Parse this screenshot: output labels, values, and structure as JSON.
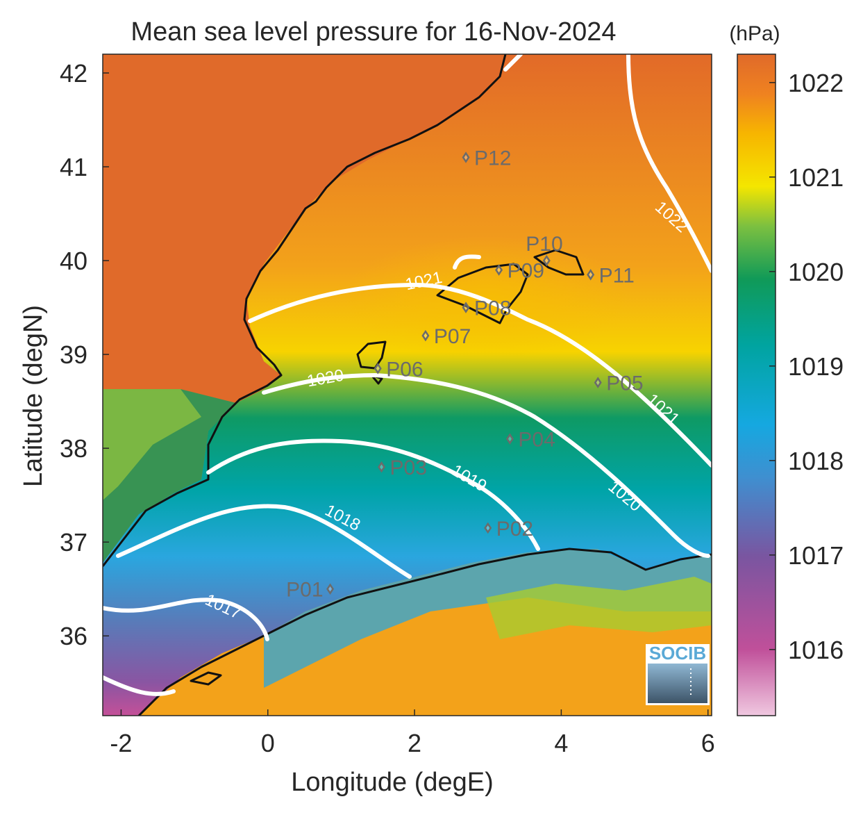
{
  "title": "Mean sea level pressure for 16-Nov-2024",
  "xlabel": "Longitude (degE)",
  "ylabel": "Latitude (degN)",
  "x_ticks": [
    "-2",
    "0",
    "2",
    "4",
    "6"
  ],
  "y_ticks": [
    "42",
    "41",
    "40",
    "39",
    "38",
    "37",
    "36"
  ],
  "colorbar": {
    "unit": "(hPa)",
    "ticks": [
      "1022",
      "1021",
      "1020",
      "1019",
      "1018",
      "1017",
      "1016"
    ],
    "range": [
      1015.3,
      1022.3
    ],
    "colors": [
      "#f0c8e0",
      "#c0509a",
      "#7a55a0",
      "#2aa6df",
      "#00a0a0",
      "#10985a",
      "#a8cc30",
      "#f8e200",
      "#f8b800",
      "#f08020",
      "#e06a2a"
    ]
  },
  "contour_labels": [
    "1017",
    "1018",
    "1019",
    "1020",
    "1020",
    "1021",
    "1021",
    "1022"
  ],
  "stations": [
    {
      "name": "P01",
      "lon": 0.85,
      "lat": 36.5
    },
    {
      "name": "P02",
      "lon": 3.0,
      "lat": 37.15
    },
    {
      "name": "P03",
      "lon": 1.55,
      "lat": 37.8
    },
    {
      "name": "P04",
      "lon": 3.3,
      "lat": 38.1
    },
    {
      "name": "P05",
      "lon": 4.5,
      "lat": 38.7
    },
    {
      "name": "P06",
      "lon": 1.5,
      "lat": 38.85
    },
    {
      "name": "P07",
      "lon": 2.15,
      "lat": 39.2
    },
    {
      "name": "P08",
      "lon": 2.7,
      "lat": 39.5
    },
    {
      "name": "P09",
      "lon": 3.15,
      "lat": 39.9
    },
    {
      "name": "P10",
      "lon": 3.8,
      "lat": 40.0
    },
    {
      "name": "P11",
      "lon": 4.4,
      "lat": 39.85
    },
    {
      "name": "P12",
      "lon": 2.7,
      "lat": 41.1
    }
  ],
  "logo": "SOCIB"
}
